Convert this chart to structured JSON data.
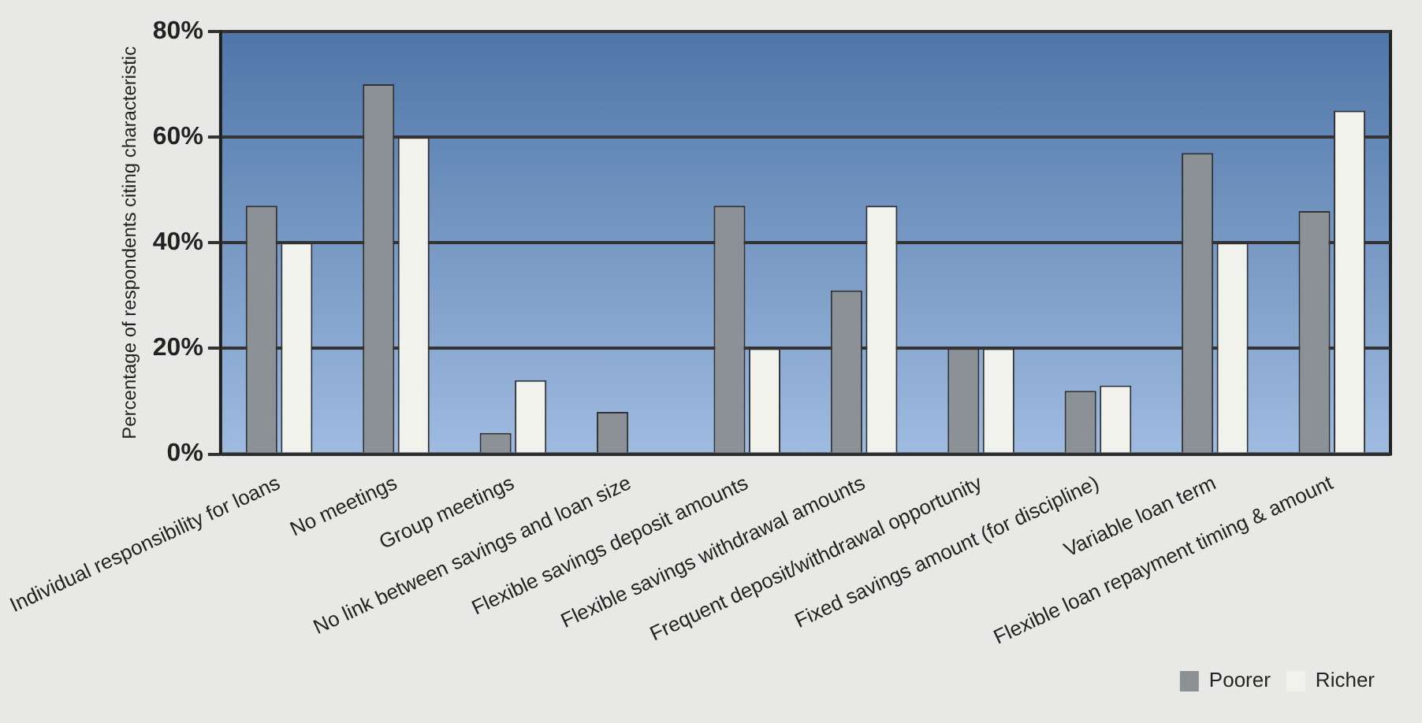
{
  "chart_data": {
    "type": "bar",
    "ylabel": "Percentage of respondents citing characteristic",
    "categories": [
      "Individual responsibility for loans",
      "No meetings",
      "Group meetings",
      "No link between savings and loan size",
      "Flexible savings deposit amounts",
      "Flexible savings withdrawal amounts",
      "Frequent deposit/withdrawal opportunity",
      "Fixed savings amount (for discipline)",
      "Variable loan term",
      "Flexible loan repayment timing & amount"
    ],
    "series": [
      {
        "name": "Poorer",
        "color": "#8c9196",
        "values": [
          47,
          70,
          4,
          8,
          47,
          31,
          20,
          12,
          57,
          46
        ]
      },
      {
        "name": "Richer",
        "color": "#f2f2ec",
        "values": [
          40,
          60,
          14,
          0,
          20,
          47,
          20,
          13,
          40,
          65
        ]
      }
    ],
    "ylim": [
      0,
      80
    ],
    "yticks": [
      {
        "value": 0,
        "label": "0%"
      },
      {
        "value": 20,
        "label": "20%"
      },
      {
        "value": 40,
        "label": "40%"
      },
      {
        "value": 60,
        "label": "60%"
      },
      {
        "value": 80,
        "label": "80%"
      }
    ],
    "grid": "y",
    "legend": "bottom right"
  }
}
